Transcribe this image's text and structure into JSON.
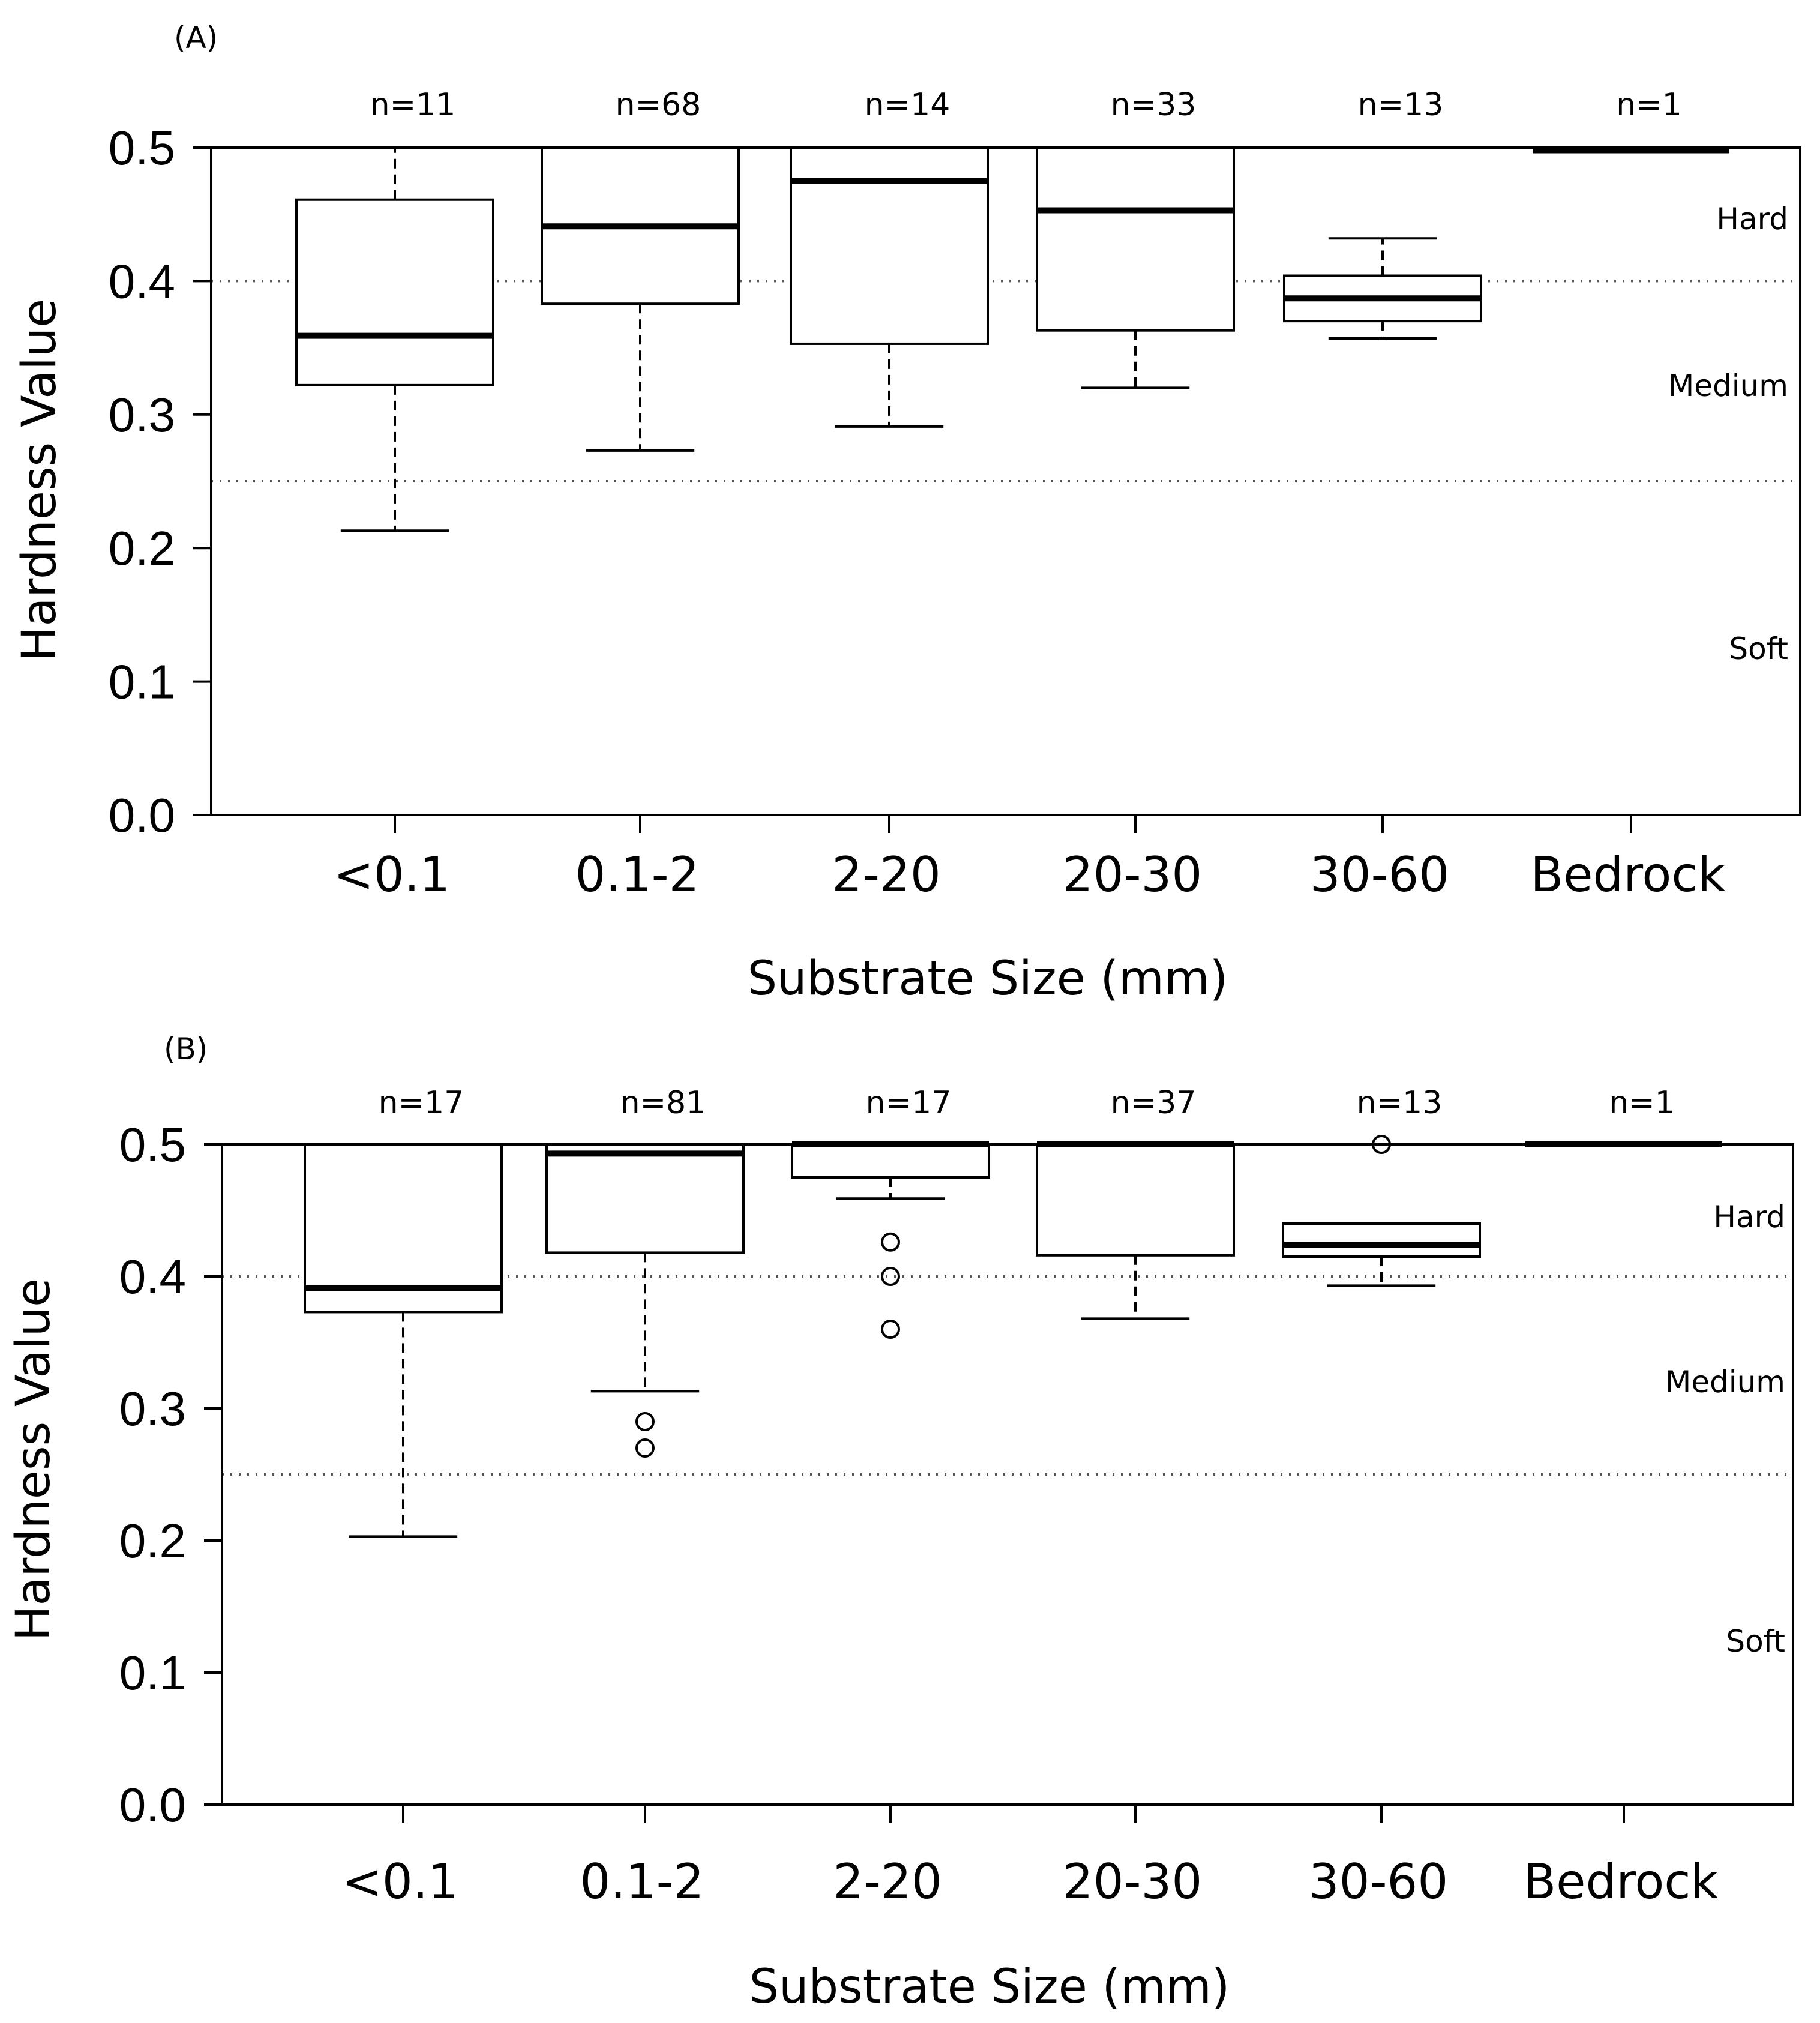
{
  "chart_data": [
    {
      "panel": "(A)",
      "type": "boxplot",
      "xlabel": "Substrate Size (mm)",
      "ylabel": "Hardness Value",
      "ylim": [
        0.0,
        0.5
      ],
      "yticks": [
        "0.0",
        "0.1",
        "0.2",
        "0.3",
        "0.4",
        "0.5"
      ],
      "categories": [
        "<0.1",
        "0.1-2",
        "2-20",
        "20-30",
        "30-60",
        "Bedrock"
      ],
      "counts": [
        "n=11",
        "n=68",
        "n=14",
        "n=33",
        "n=13",
        "n=1"
      ],
      "reference_lines": [
        0.4,
        0.25
      ],
      "zones": [
        "Hard",
        "Medium",
        "Soft"
      ],
      "boxes": [
        {
          "min": 0.213,
          "q1": 0.322,
          "median": 0.359,
          "q3": 0.461,
          "max": 0.5,
          "outliers": []
        },
        {
          "min": 0.273,
          "q1": 0.383,
          "median": 0.441,
          "q3": 0.5,
          "max": 0.5,
          "outliers": []
        },
        {
          "min": 0.291,
          "q1": 0.353,
          "median": 0.475,
          "q3": 0.5,
          "max": 0.5,
          "outliers": []
        },
        {
          "min": 0.32,
          "q1": 0.363,
          "median": 0.453,
          "q3": 0.5,
          "max": 0.5,
          "outliers": []
        },
        {
          "min": 0.357,
          "q1": 0.37,
          "median": 0.387,
          "q3": 0.404,
          "max": 0.432,
          "outliers": []
        },
        {
          "min": 0.498,
          "q1": 0.498,
          "median": 0.498,
          "q3": 0.498,
          "max": 0.498,
          "outliers": []
        }
      ]
    },
    {
      "panel": "(B)",
      "type": "boxplot",
      "xlabel": "Substrate Size (mm)",
      "ylabel": "Hardness Value",
      "ylim": [
        0.0,
        0.5
      ],
      "yticks": [
        "0.0",
        "0.1",
        "0.2",
        "0.3",
        "0.4",
        "0.5"
      ],
      "categories": [
        "<0.1",
        "0.1-2",
        "2-20",
        "20-30",
        "30-60",
        "Bedrock"
      ],
      "counts": [
        "n=17",
        "n=81",
        "n=17",
        "n=37",
        "n=13",
        "n=1"
      ],
      "reference_lines": [
        0.4,
        0.25
      ],
      "zones": [
        "Hard",
        "Medium",
        "Soft"
      ],
      "boxes": [
        {
          "min": 0.203,
          "q1": 0.373,
          "median": 0.391,
          "q3": 0.5,
          "max": 0.5,
          "outliers": []
        },
        {
          "min": 0.313,
          "q1": 0.418,
          "median": 0.493,
          "q3": 0.5,
          "max": 0.5,
          "outliers": [
            0.29,
            0.27
          ]
        },
        {
          "min": 0.459,
          "q1": 0.475,
          "median": 0.5,
          "q3": 0.5,
          "max": 0.5,
          "outliers": [
            0.426,
            0.4,
            0.36
          ]
        },
        {
          "min": 0.368,
          "q1": 0.416,
          "median": 0.5,
          "q3": 0.5,
          "max": 0.5,
          "outliers": []
        },
        {
          "min": 0.393,
          "q1": 0.415,
          "median": 0.424,
          "q3": 0.44,
          "max": 0.44,
          "outliers": [
            0.5
          ]
        },
        {
          "min": 0.5,
          "q1": 0.5,
          "median": 0.5,
          "q3": 0.5,
          "max": 0.5,
          "outliers": []
        }
      ]
    }
  ]
}
